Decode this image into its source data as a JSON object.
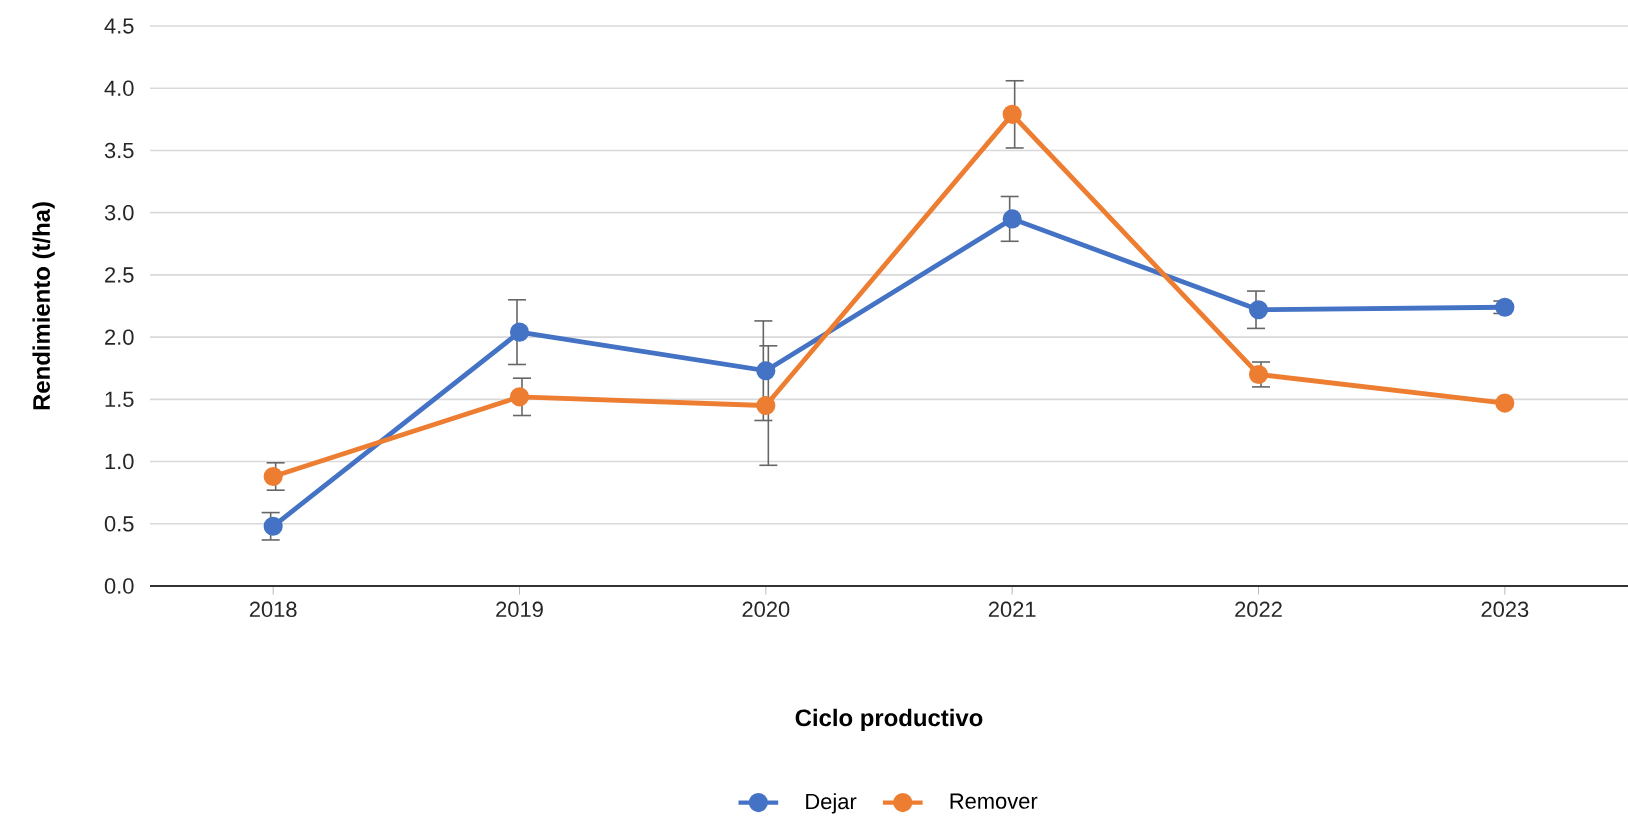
{
  "chart_data": {
    "type": "line",
    "xlabel": "Ciclo productivo",
    "ylabel": "Rendimiento (t/ha)",
    "categories": [
      "2018",
      "2019",
      "2020",
      "2021",
      "2022",
      "2023"
    ],
    "series": [
      {
        "name": "Dejar",
        "color": "#4472c4",
        "values": [
          0.48,
          2.04,
          1.73,
          2.95,
          2.22,
          2.24
        ],
        "errors": [
          0.11,
          0.26,
          0.4,
          0.18,
          0.15,
          0.05
        ]
      },
      {
        "name": "Remover",
        "color": "#ed7d31",
        "values": [
          0.88,
          1.52,
          1.45,
          3.79,
          1.7,
          1.47
        ],
        "errors": [
          0.11,
          0.15,
          0.48,
          0.27,
          0.1,
          null
        ]
      }
    ],
    "ylim": [
      0,
      4.5
    ],
    "yticks": [
      {
        "value": 0,
        "label": "0.0"
      },
      {
        "value": 0.5,
        "label": "0.5"
      },
      {
        "value": 1,
        "label": "1.0"
      },
      {
        "value": 1.5,
        "label": "1.5"
      },
      {
        "value": 2,
        "label": "2.0"
      },
      {
        "value": 2.5,
        "label": "2.5"
      },
      {
        "value": 3,
        "label": "3.0"
      },
      {
        "value": 3.5,
        "label": "3.5"
      },
      {
        "value": 4,
        "label": "4.0"
      },
      {
        "value": 4.5,
        "label": "4.5"
      }
    ],
    "grid": "y",
    "legend": "bottom",
    "marker": "circle",
    "line_style": "solid"
  }
}
